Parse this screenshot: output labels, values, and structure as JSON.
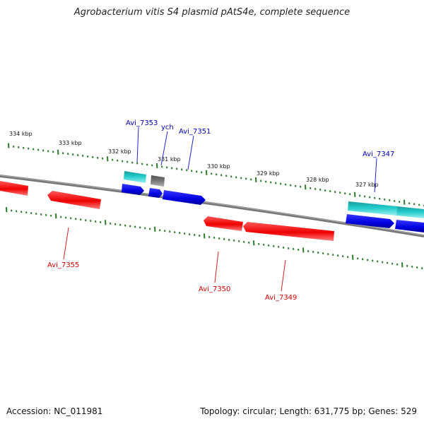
{
  "title": "Agrobacterium vitis S4 plasmid pAtS4e, complete sequence",
  "footer": {
    "accession": "Accession: NC_011981",
    "summary": "Topology: circular; Length: 631,775 bp; Genes: 529"
  },
  "colors": {
    "forward_gene": "#0000ee",
    "reverse_gene": "#ee0000",
    "rna_gene": "#22c8c8",
    "other_feature": "#707070",
    "backbone": "#808080",
    "ticks": "#2a7a2a",
    "forward_label": "#0000aa",
    "reverse_label": "#cc0000"
  },
  "ticks": [
    "334 kbp",
    "333 kbp",
    "332 kbp",
    "331 kbp",
    "330 kbp",
    "329 kbp",
    "328 kbp",
    "327 kbp"
  ],
  "labels": {
    "forward": [
      "Avi_7353",
      "ych",
      "Avi_7351",
      "Avi_7347"
    ],
    "reverse": [
      "Avi_7355",
      "Avi_7350",
      "Avi_7349"
    ]
  }
}
